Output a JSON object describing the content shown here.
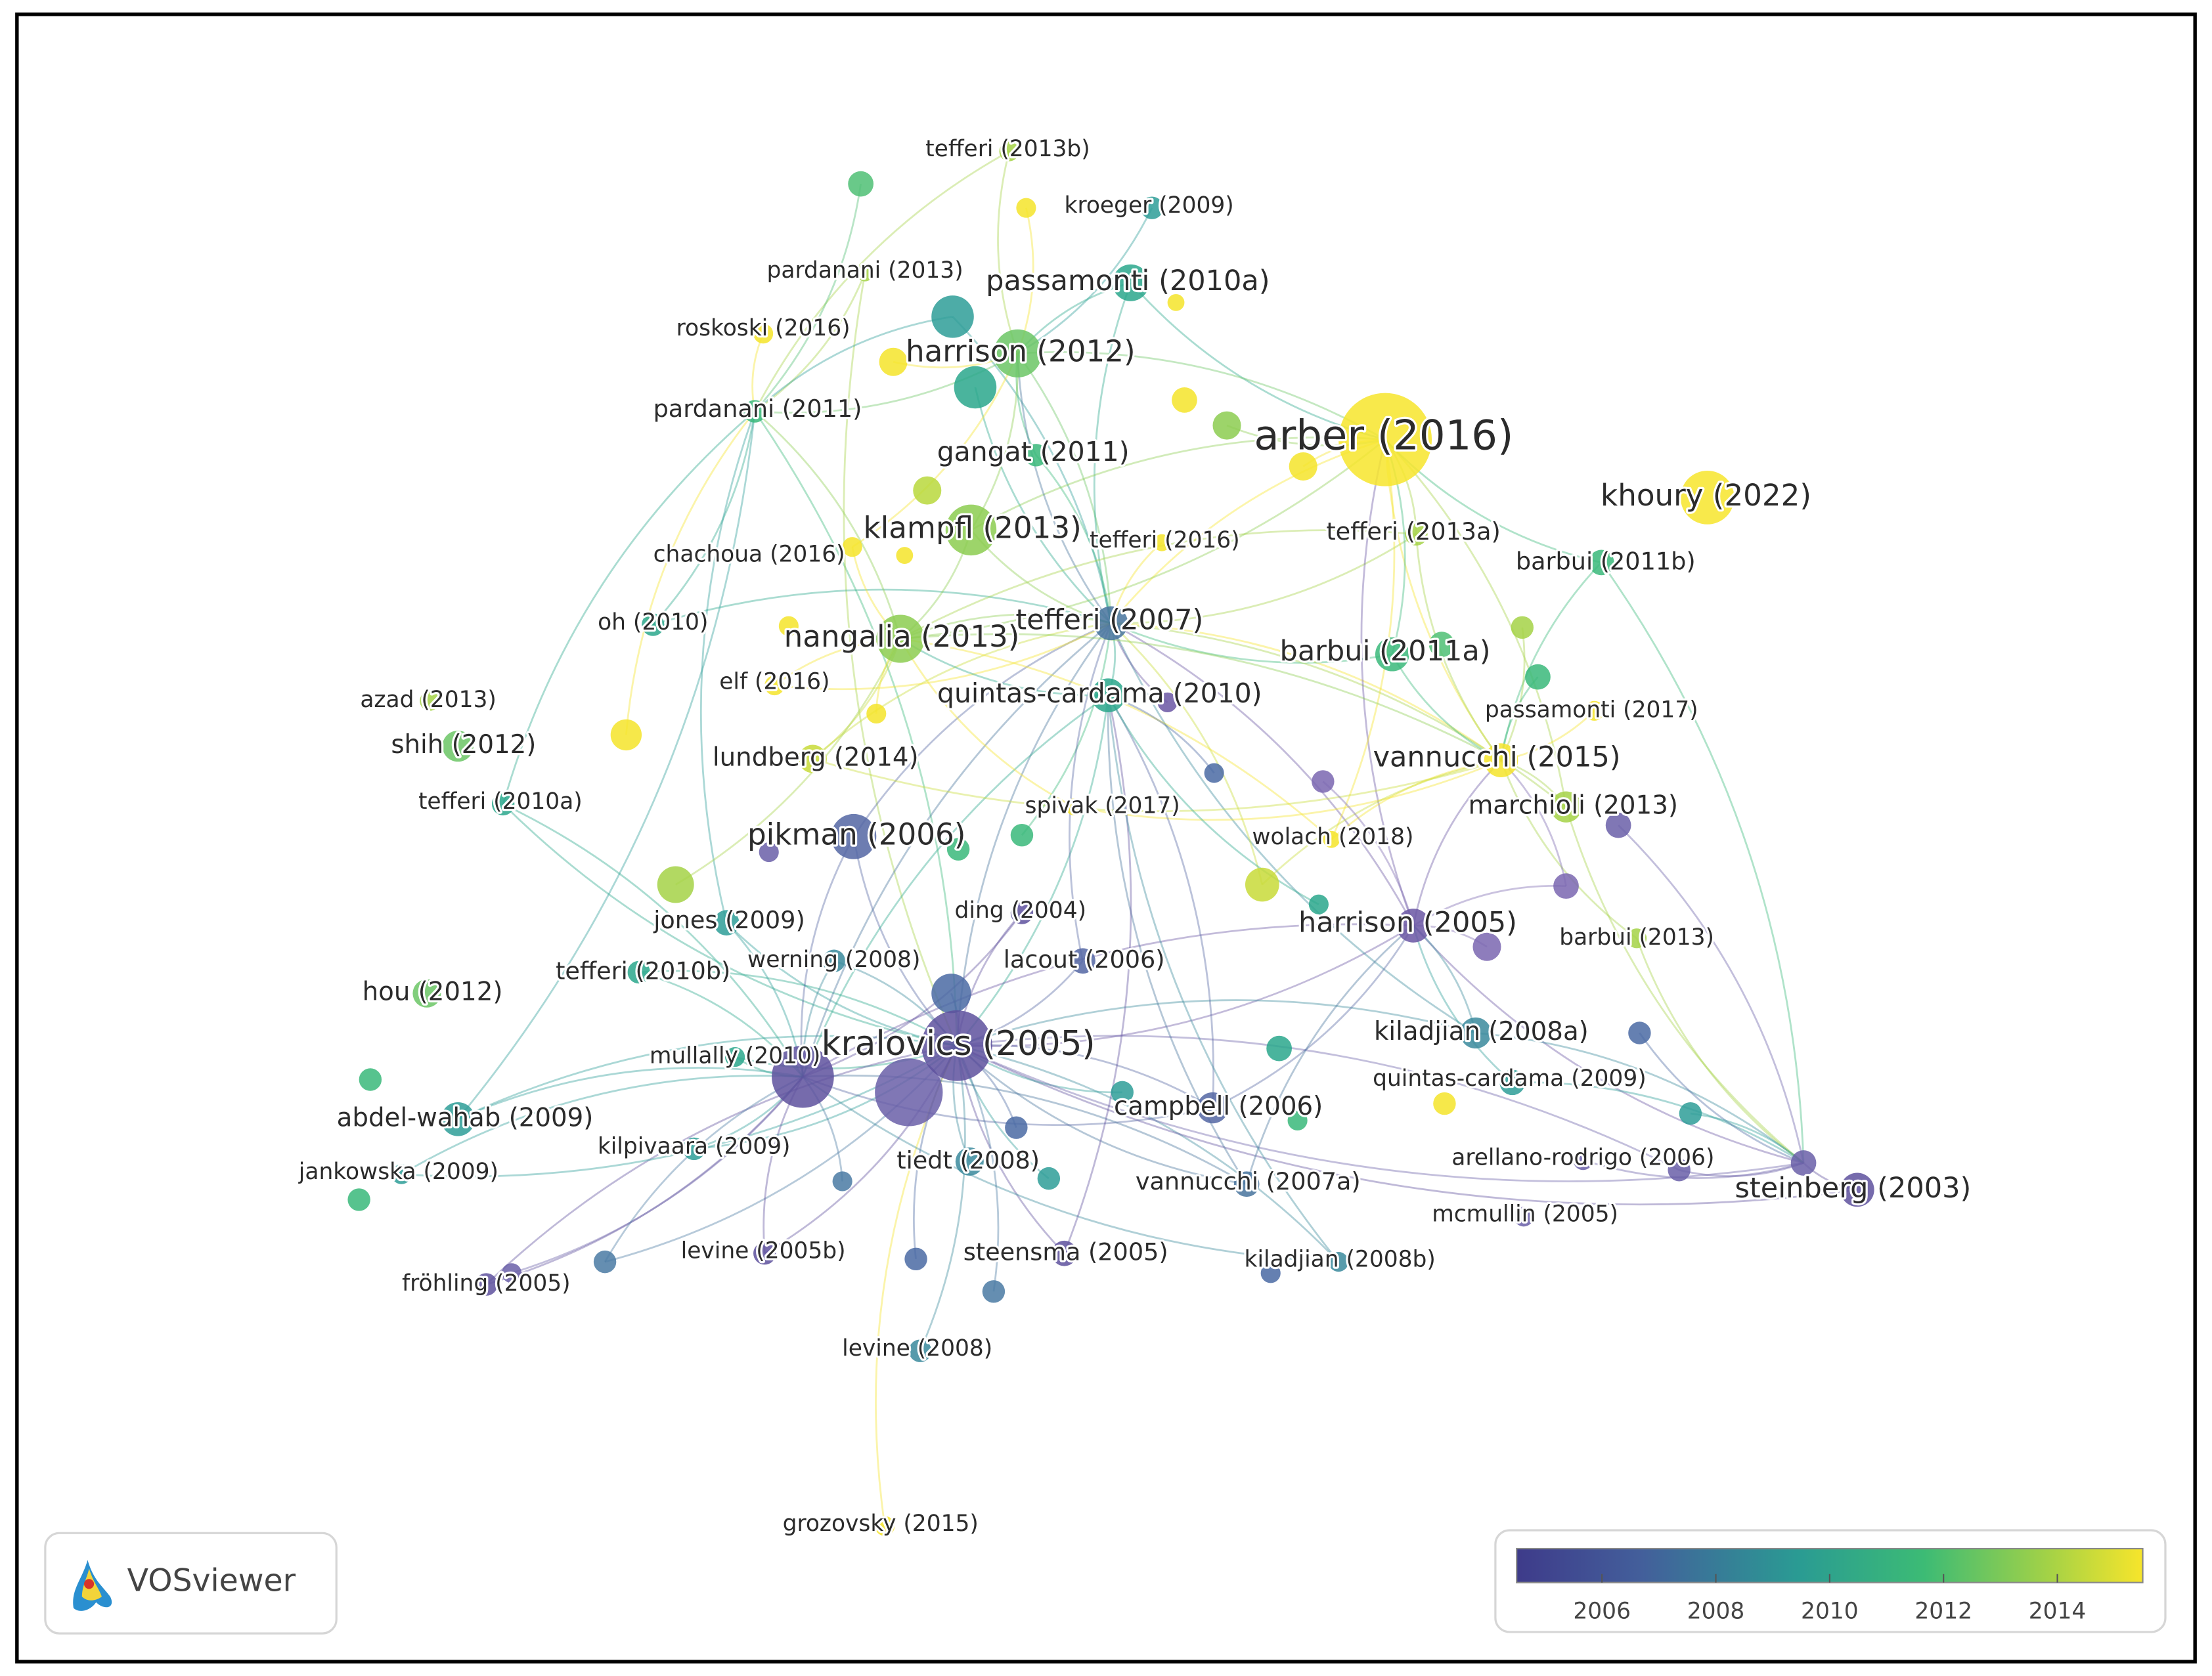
{
  "nodes": [
    {
      "label": "tefferi (2013b)",
      "color": "#a4d246"
    },
    {
      "label": "kroeger (2009)",
      "color": "#2e9d98"
    },
    {
      "label": "pardanani (2013)",
      "color": "#a4d246"
    },
    {
      "label": "passamonti (2010a)",
      "color": "#2aa78c"
    },
    {
      "label": "roskoski (2016)",
      "color": "#f5e42a"
    },
    {
      "label": "harrison (2012)",
      "color": "#6bc565"
    },
    {
      "label": "pardanani (2011)",
      "color": "#3ab87a"
    },
    {
      "label": "arber (2016)",
      "color": "#f7e52b"
    },
    {
      "label": "khoury (2022)",
      "color": "#f7e52b"
    },
    {
      "label": "gangat (2011)",
      "color": "#3ab87a"
    },
    {
      "label": "klampfl (2013)",
      "color": "#8ccd50"
    },
    {
      "label": "tefferi (2016)",
      "color": "#f5e42a"
    },
    {
      "label": "tefferi (2013a)",
      "color": "#a4d246"
    },
    {
      "label": "chachoua (2016)",
      "color": "#f5e42a"
    },
    {
      "label": "barbui (2011b)",
      "color": "#3ab87a"
    },
    {
      "label": "oh (2010)",
      "color": "#2aa78c"
    },
    {
      "label": "nangalia (2013)",
      "color": "#8ccd50"
    },
    {
      "label": "tefferi (2007)",
      "color": "#46739c"
    },
    {
      "label": "barbui (2011a)",
      "color": "#3ab87a"
    },
    {
      "label": "azad (2013)",
      "color": "#a4d246"
    },
    {
      "label": "elf (2016)",
      "color": "#f5e42a"
    },
    {
      "label": "quintas-cardama (2010)",
      "color": "#2aa78c"
    },
    {
      "label": "passamonti (2017)",
      "color": "#f5e42a"
    },
    {
      "label": "shih (2012)",
      "color": "#6bc565"
    },
    {
      "label": "lundberg (2014)",
      "color": "#c8db38"
    },
    {
      "label": "vannucchi (2015)",
      "color": "#f5e42a"
    },
    {
      "label": "tefferi (2010a)",
      "color": "#2aa78c"
    },
    {
      "label": "spivak (2017)",
      "color": "#f5e42a"
    },
    {
      "label": "marchioli (2013)",
      "color": "#a4d246"
    },
    {
      "label": "pikman (2006)",
      "color": "#5466a3"
    },
    {
      "label": "wolach (2018)",
      "color": "#f5e42a"
    },
    {
      "label": "ding (2004)",
      "color": "#5e519e"
    },
    {
      "label": "jones (2009)",
      "color": "#2e9d98"
    },
    {
      "label": "harrison (2005)",
      "color": "#6a56a3"
    },
    {
      "label": "barbui (2013)",
      "color": "#a4d246"
    },
    {
      "label": "werning (2008)",
      "color": "#3a8a9c"
    },
    {
      "label": "lacout (2006)",
      "color": "#5466a3"
    },
    {
      "label": "tefferi (2010b)",
      "color": "#2aa78c"
    },
    {
      "label": "hou (2012)",
      "color": "#6bc565"
    },
    {
      "label": "kralovics (2005)",
      "color": "#5e519e"
    },
    {
      "label": "kiladjian (2008a)",
      "color": "#3a8a9c"
    },
    {
      "label": "mullally (2010)",
      "color": "#2aa78c"
    },
    {
      "label": "quintas-cardama (2009)",
      "color": "#2e9d98"
    },
    {
      "label": "abdel-wahab (2009)",
      "color": "#2e9d98"
    },
    {
      "label": "campbell (2006)",
      "color": "#5466a3"
    },
    {
      "label": "kilpivaara (2009)",
      "color": "#2e9d98"
    },
    {
      "label": "tiedt (2008)",
      "color": "#3a8a9c"
    },
    {
      "label": "arellano-rodrigo (2006)",
      "color": "#6a5fa8"
    },
    {
      "label": "jankowska (2009)",
      "color": "#2e9d98"
    },
    {
      "label": "vannucchi (2007a)",
      "color": "#46739c"
    },
    {
      "label": "steinberg (2003)",
      "color": "#5e519e"
    },
    {
      "label": "mcmullin (2005)",
      "color": "#6a5fa8"
    },
    {
      "label": "levine (2005b)",
      "color": "#5e519e"
    },
    {
      "label": "steensma (2005)",
      "color": "#5e519e"
    },
    {
      "label": "kiladjian (2008b)",
      "color": "#3a8a9c"
    },
    {
      "label": "fröhling (2005)",
      "color": "#5e519e"
    },
    {
      "label": "levine (2008)",
      "color": "#3a8a9c"
    },
    {
      "label": "grozovsky (2015)",
      "color": "#f5e42a"
    }
  ],
  "legend": {
    "range": [
      2004.5,
      2015.5
    ],
    "ticks": [
      2006,
      2008,
      2010,
      2012,
      2014
    ]
  },
  "logo": {
    "text": "VOSviewer"
  }
}
